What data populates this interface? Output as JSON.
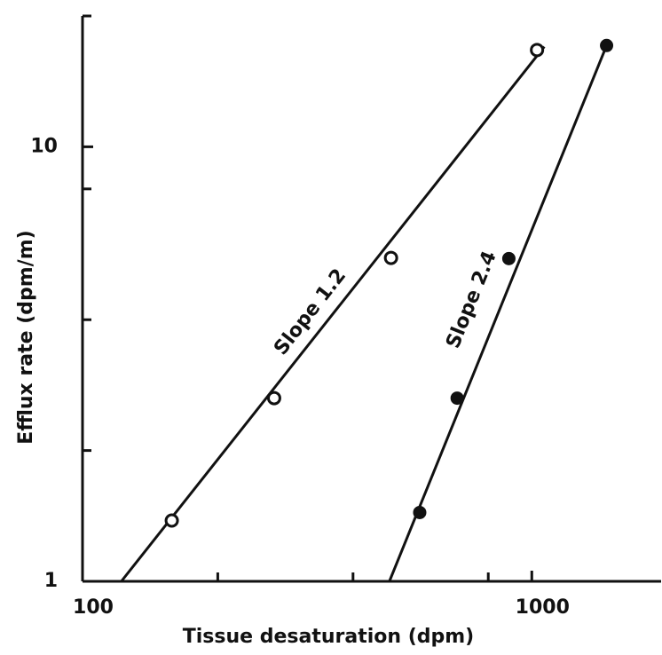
{
  "chart_data": {
    "type": "scatter",
    "x_label": "Tissue desaturation (dpm)",
    "y_label": "Efflux rate (dpm/m)",
    "log_x": true,
    "log_y": true,
    "xlim": [
      100,
      1940
    ],
    "ylim": [
      1,
      20
    ],
    "xticks": [
      100,
      1000
    ],
    "yticks": [
      1,
      10
    ],
    "xminor_ticks": [
      200,
      400,
      800
    ],
    "yminor_ticks": [
      2,
      4,
      8,
      20
    ],
    "color": "#111111",
    "series": [
      {
        "marker": "open",
        "x": [
          158,
          267,
          486,
          1027
        ],
        "values": [
          1.38,
          2.64,
          5.55,
          16.7
        ]
      },
      {
        "marker": "filled",
        "x": [
          563,
          682,
          889,
          1467
        ],
        "values": [
          1.44,
          2.64,
          5.53,
          17.1
        ]
      }
    ],
    "lines": [
      {
        "x": [
          122,
          1066
        ],
        "values": [
          1,
          17.0
        ]
      },
      {
        "x": [
          482,
          1467
        ],
        "values": [
          1,
          17.1
        ]
      }
    ],
    "annotations": [
      "Slope 1.2",
      "Slope 2.4"
    ]
  }
}
